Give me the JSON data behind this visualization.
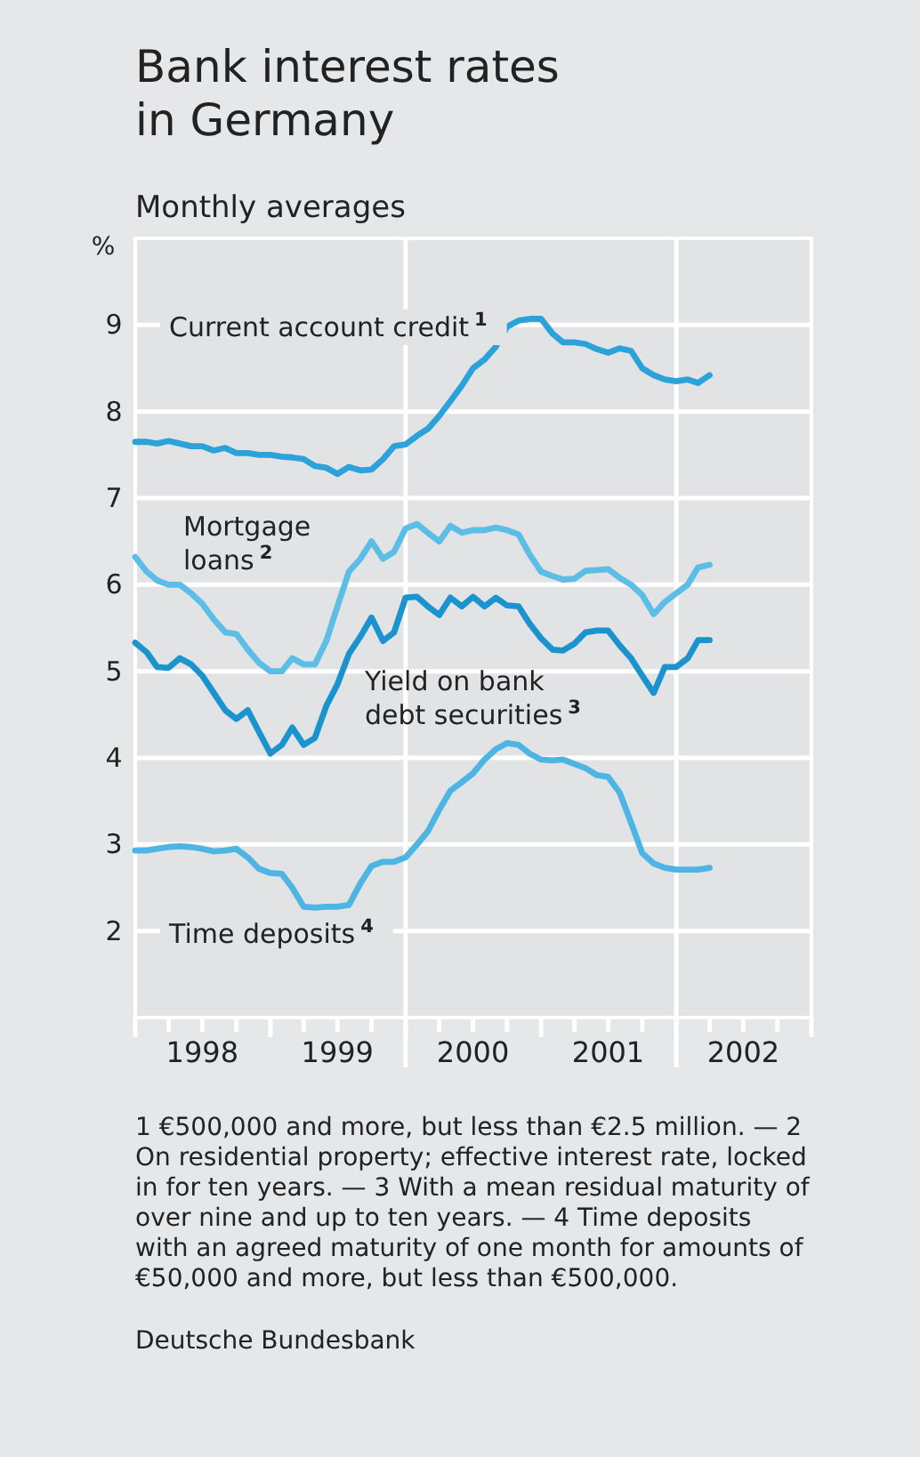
{
  "chart_data": {
    "type": "line",
    "title": "Bank interest rates in Germany",
    "subtitle": "Monthly averages",
    "ylabel": "%",
    "x": [
      "1998-01",
      "1998-02",
      "1998-03",
      "1998-04",
      "1998-05",
      "1998-06",
      "1998-07",
      "1998-08",
      "1998-09",
      "1998-10",
      "1998-11",
      "1998-12",
      "1999-01",
      "1999-02",
      "1999-03",
      "1999-04",
      "1999-05",
      "1999-06",
      "1999-07",
      "1999-08",
      "1999-09",
      "1999-10",
      "1999-11",
      "1999-12",
      "2000-01",
      "2000-02",
      "2000-03",
      "2000-04",
      "2000-05",
      "2000-06",
      "2000-07",
      "2000-08",
      "2000-09",
      "2000-10",
      "2000-11",
      "2000-12",
      "2001-01",
      "2001-02",
      "2001-03",
      "2001-04",
      "2001-05",
      "2001-06",
      "2001-07",
      "2001-08",
      "2001-09",
      "2001-10",
      "2001-11",
      "2001-12",
      "2002-01",
      "2002-02",
      "2002-03",
      "2002-04"
    ],
    "series": [
      {
        "name": "Current account credit$^{1}$",
        "color": "#2ba3da",
        "values": [
          7.65,
          7.65,
          7.63,
          7.66,
          7.63,
          7.6,
          7.6,
          7.55,
          7.58,
          7.52,
          7.52,
          7.5,
          7.5,
          7.48,
          7.47,
          7.45,
          7.37,
          7.35,
          7.28,
          7.36,
          7.32,
          7.33,
          7.45,
          7.6,
          7.62,
          7.72,
          7.8,
          7.95,
          8.12,
          8.3,
          8.5,
          8.6,
          8.75,
          8.98,
          9.05,
          9.07,
          9.07,
          8.9,
          8.8,
          8.8,
          8.78,
          8.72,
          8.68,
          8.73,
          8.7,
          8.5,
          8.42,
          8.37,
          8.35,
          8.37,
          8.33,
          8.42
        ]
      },
      {
        "name": "Mortgage loans$^{2}$",
        "color": "#5cbde6",
        "values": [
          6.32,
          6.15,
          6.05,
          6.0,
          6.0,
          5.9,
          5.78,
          5.6,
          5.45,
          5.43,
          5.25,
          5.1,
          5.0,
          5.0,
          5.15,
          5.08,
          5.08,
          5.35,
          5.75,
          6.15,
          6.3,
          6.5,
          6.3,
          6.38,
          6.65,
          6.7,
          6.6,
          6.5,
          6.68,
          6.6,
          6.63,
          6.63,
          6.66,
          6.63,
          6.58,
          6.35,
          6.15,
          6.1,
          6.06,
          6.07,
          6.16,
          6.17,
          6.18,
          6.08,
          6.0,
          5.88,
          5.66,
          5.8,
          5.9,
          6.0,
          6.2,
          6.23
        ]
      },
      {
        "name": "Yield on bank debt securities$^{3}$",
        "color": "#1a93cf",
        "values": [
          5.33,
          5.22,
          5.05,
          5.04,
          5.15,
          5.08,
          4.95,
          4.75,
          4.55,
          4.45,
          4.55,
          4.3,
          4.05,
          4.15,
          4.35,
          4.15,
          4.23,
          4.6,
          4.85,
          5.2,
          5.4,
          5.62,
          5.35,
          5.45,
          5.85,
          5.86,
          5.75,
          5.65,
          5.85,
          5.75,
          5.86,
          5.75,
          5.85,
          5.76,
          5.75,
          5.55,
          5.38,
          5.25,
          5.24,
          5.32,
          5.45,
          5.47,
          5.47,
          5.3,
          5.15,
          4.95,
          4.75,
          5.05,
          5.05,
          5.15,
          5.36,
          5.36
        ]
      },
      {
        "name": "Time deposits$^{4}$",
        "color": "#4db5e3",
        "values": [
          2.93,
          2.93,
          2.95,
          2.97,
          2.98,
          2.97,
          2.95,
          2.92,
          2.93,
          2.95,
          2.85,
          2.72,
          2.67,
          2.66,
          2.5,
          2.28,
          2.27,
          2.28,
          2.28,
          2.3,
          2.55,
          2.75,
          2.8,
          2.8,
          2.85,
          3.0,
          3.15,
          3.4,
          3.62,
          3.72,
          3.82,
          3.98,
          4.1,
          4.17,
          4.15,
          4.05,
          3.98,
          3.97,
          3.98,
          3.93,
          3.88,
          3.8,
          3.78,
          3.6,
          3.25,
          2.9,
          2.78,
          2.73,
          2.71,
          2.71,
          2.71,
          2.73
        ]
      }
    ],
    "xlim": [
      "1998-01",
      "2003-01"
    ],
    "xticks": [
      {
        "value": "1998-01",
        "label": null
      },
      {
        "value": "1998-04",
        "label": null
      },
      {
        "value": "1998-07",
        "label": "1998"
      },
      {
        "value": "1998-10",
        "label": null
      },
      {
        "value": "1999-01",
        "label": null
      },
      {
        "value": "1999-04",
        "label": null
      },
      {
        "value": "1999-07",
        "label": "1999"
      },
      {
        "value": "1999-10",
        "label": null
      },
      {
        "value": "2000-01",
        "label": null
      },
      {
        "value": "2000-04",
        "label": null
      },
      {
        "value": "2000-07",
        "label": "2000"
      },
      {
        "value": "2000-10",
        "label": null
      },
      {
        "value": "2001-01",
        "label": null
      },
      {
        "value": "2001-04",
        "label": null
      },
      {
        "value": "2001-07",
        "label": "2001"
      },
      {
        "value": "2001-10",
        "label": null
      },
      {
        "value": "2002-01",
        "label": null
      },
      {
        "value": "2002-04",
        "label": null
      },
      {
        "value": "2002-07",
        "label": "2002"
      },
      {
        "value": "2002-10",
        "label": null
      },
      {
        "value": "2003-01",
        "label": null
      }
    ],
    "ylim": [
      1,
      10
    ],
    "yticks": [
      2,
      3,
      4,
      5,
      6,
      7,
      8,
      9
    ],
    "grid": "y",
    "marker": "none",
    "line_style": "solid",
    "ref_lines": [
      {
        "axis": "x",
        "value": "2000-01",
        "color": "#ffffff"
      },
      {
        "axis": "x",
        "value": "2002-01",
        "color": "#ffffff"
      }
    ],
    "annotations": [
      "1 €500,000 and more, but less than €2.5 million. — 2 On residential property; effective interest rate, locked in for ten years. — 3 With a mean residual maturity of over nine and up to ten years. — 4 Time deposits with an agreed maturity of one month for amounts of €50,000 and more, but less than €500,000.",
      "Deutsche Bundesbank"
    ]
  }
}
